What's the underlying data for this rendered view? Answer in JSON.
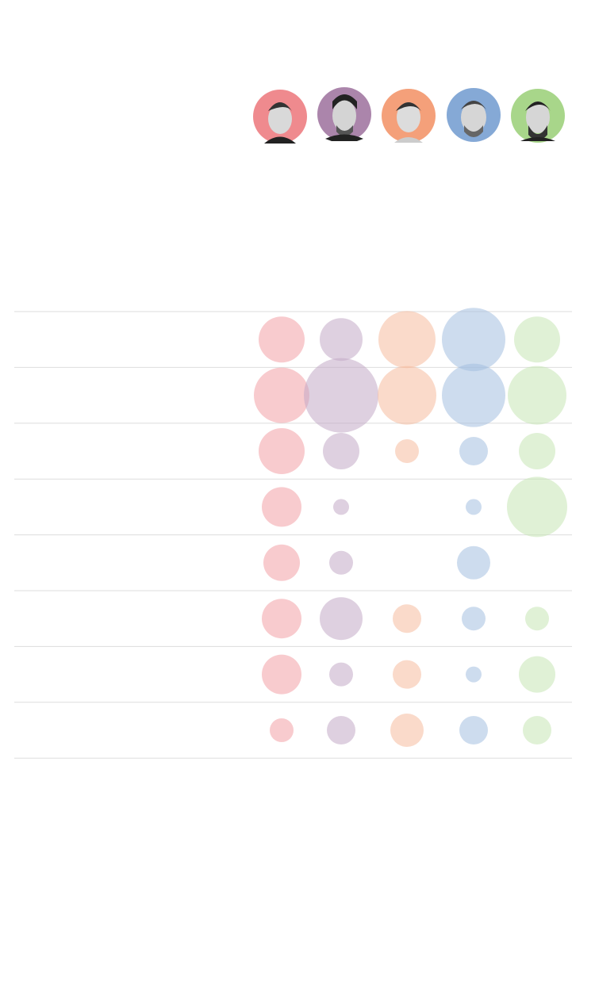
{
  "chart_data": {
    "type": "bubble",
    "categories": [
      null,
      null,
      null,
      null,
      null,
      null,
      null,
      null
    ],
    "series": [
      {
        "color": "#f2a0a6",
        "values": [
          29,
          35,
          29,
          25,
          23,
          25,
          25,
          15
        ]
      },
      {
        "color": "#c2a9c6",
        "values": [
          27,
          47,
          23,
          10,
          15,
          27,
          15,
          18
        ]
      },
      {
        "color": "#f6bc9f",
        "values": [
          36,
          37,
          15,
          null,
          null,
          18,
          18,
          21
        ]
      },
      {
        "color": "#a4bfe0",
        "values": [
          40,
          40,
          18,
          10,
          21,
          15,
          10,
          18
        ]
      },
      {
        "color": "#c6e6b4",
        "values": [
          29,
          37,
          23,
          38,
          null,
          15,
          23,
          18
        ]
      }
    ]
  }
}
